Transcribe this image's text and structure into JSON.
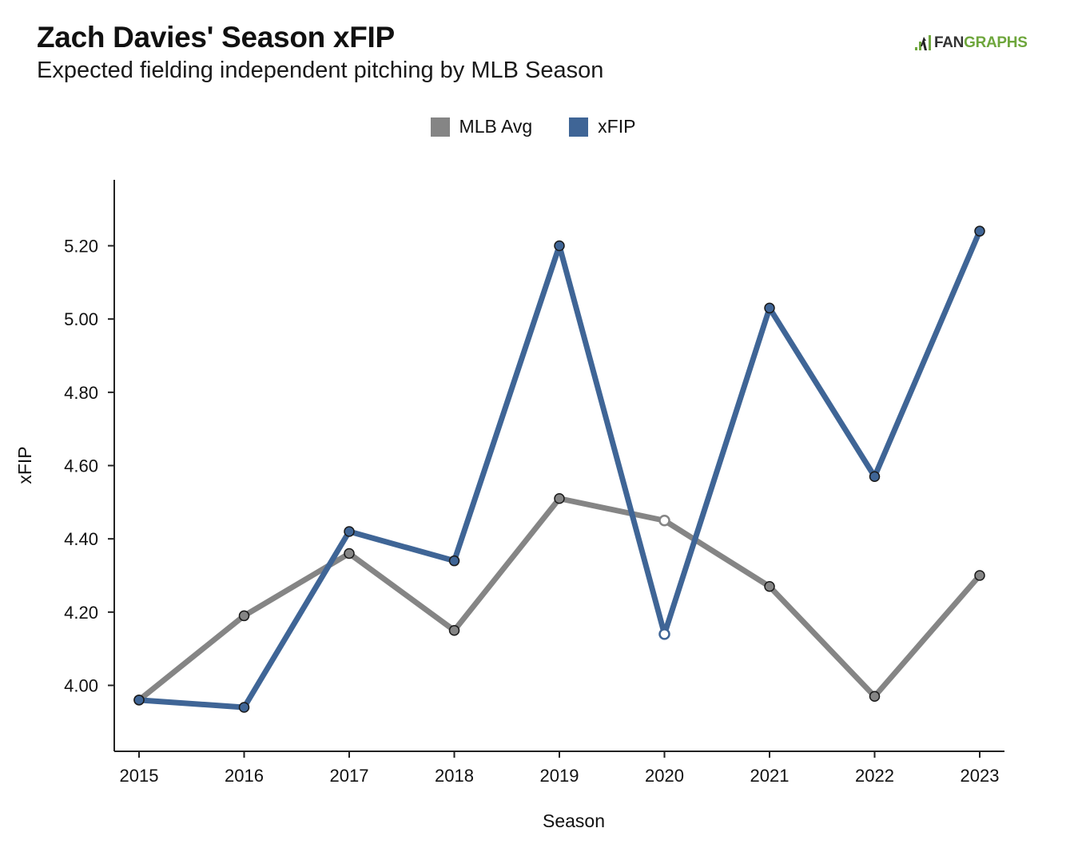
{
  "header": {
    "title": "Zach Davies' Season xFIP",
    "subtitle": "Expected fielding independent pitching by MLB Season"
  },
  "logo": {
    "fan": "FAN",
    "graphs": "GRAPHS"
  },
  "colors": {
    "mlb_avg": "#858585",
    "xfip": "#3f6596",
    "axis": "#222222",
    "point_stroke": "#1a1a1a"
  },
  "chart_data": {
    "type": "line",
    "x": [
      "2015",
      "2016",
      "2017",
      "2018",
      "2019",
      "2020",
      "2021",
      "2022",
      "2023"
    ],
    "xlabel": "Season",
    "ylabel": "xFIP",
    "ylim": [
      3.82,
      5.38
    ],
    "yticks": [
      4.0,
      4.2,
      4.4,
      4.6,
      4.8,
      5.0,
      5.2
    ],
    "ytick_labels": [
      "4.00",
      "4.20",
      "4.40",
      "4.60",
      "4.80",
      "5.00",
      "5.20"
    ],
    "grid": false,
    "legend_position": "top-center",
    "series": [
      {
        "name": "MLB Avg",
        "color": "#858585",
        "values": [
          3.96,
          4.19,
          4.36,
          4.15,
          4.51,
          4.45,
          4.27,
          3.97,
          4.3
        ],
        "hollow_points": [
          5
        ]
      },
      {
        "name": "xFIP",
        "color": "#3f6596",
        "values": [
          3.96,
          3.94,
          4.42,
          4.34,
          5.2,
          4.14,
          5.03,
          4.57,
          5.24
        ],
        "hollow_points": [
          5
        ]
      }
    ]
  }
}
